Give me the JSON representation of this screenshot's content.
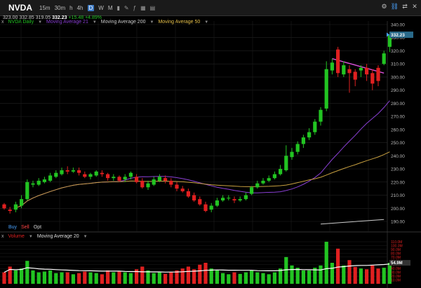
{
  "toolbar": {
    "ticker": "NVDA",
    "timeframes": [
      "15m",
      "30m",
      "h",
      "4h",
      "D",
      "W",
      "M"
    ],
    "active_timeframe": "D"
  },
  "ohlc": {
    "open": "323.00",
    "high": "332.85",
    "low": "319.05",
    "last": "332.23",
    "change": "+15.48",
    "pct": "+4.89%"
  },
  "legend": {
    "close": "x",
    "series": "NVDA Daily",
    "ma21": "Moving Average 21",
    "ma200": "Moving Average 200",
    "ma50": "Moving Average 50"
  },
  "trade": {
    "buy": "Buy",
    "sell": "Sell",
    "opt": "Opt"
  },
  "volume": {
    "close": "x",
    "label": "Volume",
    "ma": "Moving Average 20",
    "axis": [
      "110.0M",
      "100.0M",
      "90.0M",
      "80.0M",
      "70.0M",
      "60.0M",
      "50.0M",
      "40.0M",
      "30.0M",
      "20.0M",
      "10.0M"
    ],
    "current": "54.9M"
  },
  "price_axis": [
    "340.00",
    "330.00",
    "320.00",
    "310.00",
    "300.00",
    "290.00",
    "280.00",
    "270.00",
    "260.00",
    "250.00",
    "240.00",
    "230.00",
    "220.00",
    "210.00",
    "200.00",
    "190.00"
  ],
  "current_price": "332.23",
  "colors": {
    "up": "#22c422",
    "down": "#e02020",
    "ma21": "#8a3fd4",
    "ma50": "#c8a040",
    "ma200": "#cccccc",
    "trend": "#d94fd9"
  }
}
